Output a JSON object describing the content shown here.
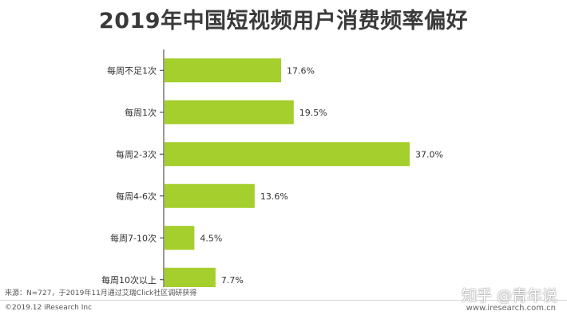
{
  "chart_data": {
    "type": "bar",
    "orientation": "horizontal",
    "title": "2019年中国短视频用户消费频率偏好",
    "categories": [
      "每周不足1次",
      "每周1次",
      "每周2-3次",
      "每周4-6次",
      "每周7-10次",
      "每周10次以上"
    ],
    "values": [
      17.6,
      19.5,
      37.0,
      13.6,
      4.5,
      7.7
    ],
    "value_labels": [
      "17.6%",
      "19.5%",
      "37.0%",
      "13.6%",
      "4.5%",
      "7.7%"
    ],
    "unit": "%",
    "bar_color": "#a4cf2c",
    "xlim": [
      0,
      40
    ],
    "grid": false,
    "legend": "none"
  },
  "footer": {
    "source": "来源：N=727，于2019年11月通过艾瑞Click社区调研获得",
    "copyright": "©2019.12 iResearch Inc",
    "website": "www.iresearch.com.cn",
    "watermark": "知乎 @青年说"
  }
}
